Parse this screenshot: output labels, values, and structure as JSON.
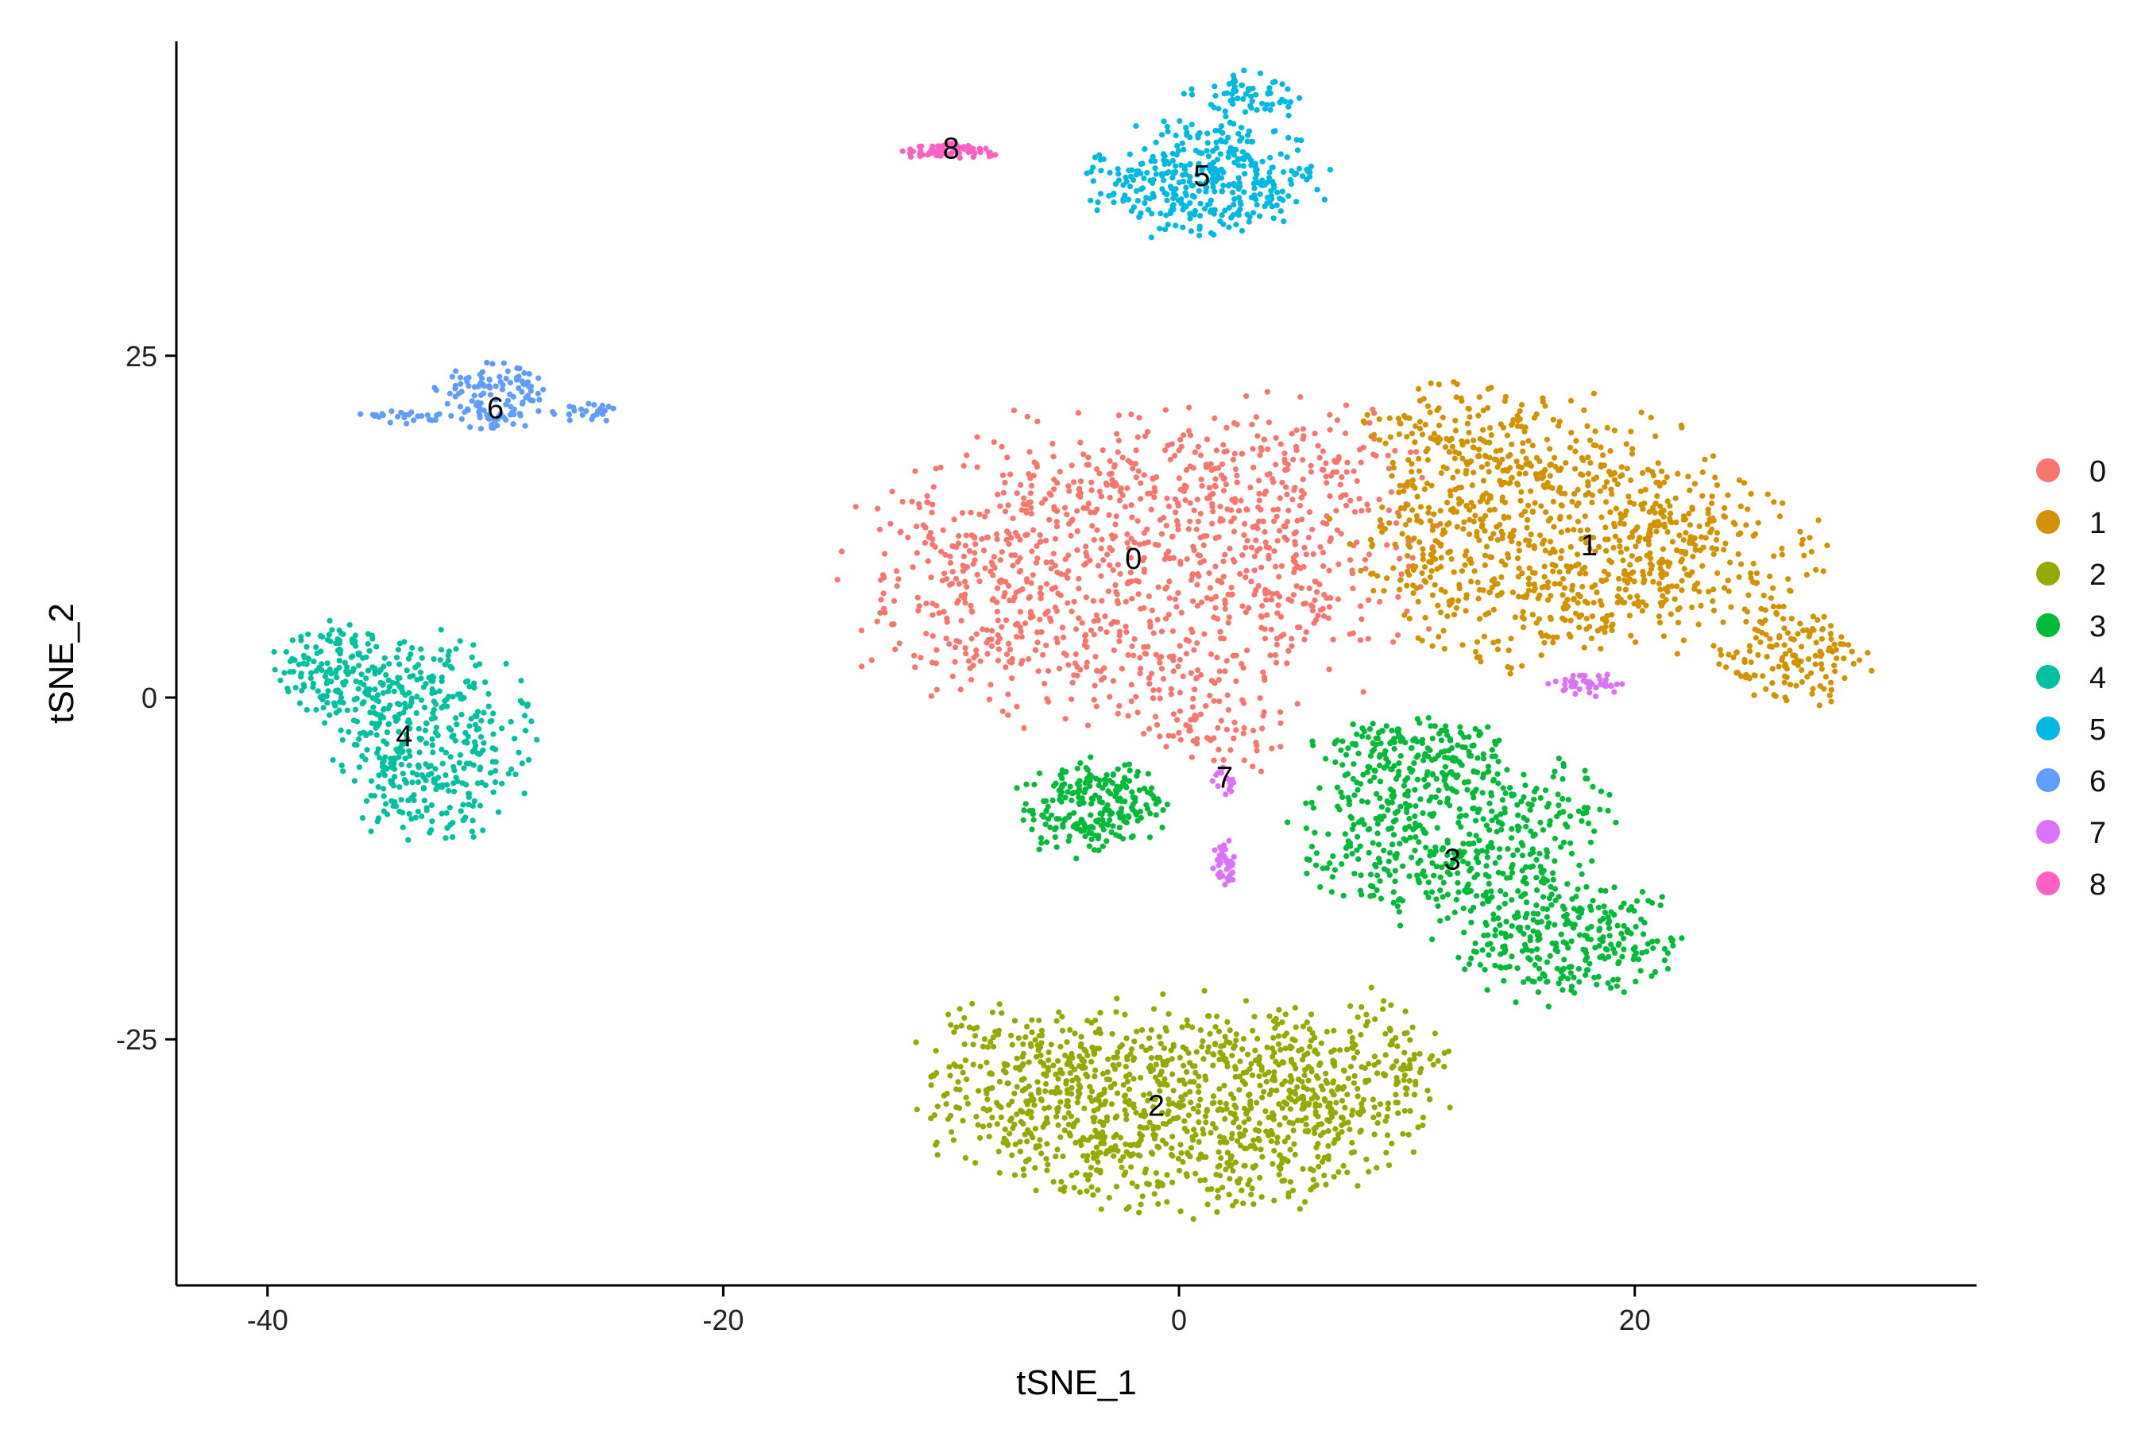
{
  "chart_data": {
    "type": "scatter",
    "title": "",
    "xlabel": "tSNE_1",
    "ylabel": "tSNE_2",
    "xlim": [
      -44,
      35
    ],
    "ylim": [
      -43,
      48
    ],
    "x_ticks": [
      -40,
      -20,
      0,
      20
    ],
    "y_ticks": [
      25,
      0,
      -25
    ],
    "x_tick_labels": [
      "-40",
      "-20",
      "0",
      "20"
    ],
    "y_tick_labels": [
      "25",
      "0",
      "-25"
    ],
    "grid": false,
    "legend_position": "right",
    "series": [
      {
        "name": "0",
        "color": "#F8766D",
        "label_x": -2,
        "label_y": 10,
        "regions": [
          {
            "cx": -2,
            "cy": 9,
            "rx": 14,
            "ry": 13,
            "n": 1050
          },
          {
            "cx": 5,
            "cy": 17,
            "rx": 6,
            "ry": 6,
            "n": 120
          },
          {
            "cx": 2,
            "cy": -3,
            "rx": 4,
            "ry": 3,
            "n": 50
          }
        ]
      },
      {
        "name": "1",
        "color": "#D39200",
        "label_x": 18,
        "label_y": 11,
        "regions": [
          {
            "cx": 16,
            "cy": 12,
            "rx": 10,
            "ry": 11,
            "n": 820
          },
          {
            "cx": 27,
            "cy": 3,
            "rx": 4,
            "ry": 4,
            "n": 140
          },
          {
            "cx": 24,
            "cy": 10,
            "rx": 5,
            "ry": 6,
            "n": 110
          },
          {
            "cx": 12,
            "cy": 20,
            "rx": 5,
            "ry": 4,
            "n": 90
          }
        ]
      },
      {
        "name": "2",
        "color": "#93AA00",
        "label_x": -1,
        "label_y": -30,
        "regions": [
          {
            "cx": 0,
            "cy": -30,
            "rx": 12,
            "ry": 9,
            "n": 1000
          },
          {
            "cx": 8,
            "cy": -27,
            "rx": 5,
            "ry": 6,
            "n": 150
          },
          {
            "cx": -8,
            "cy": -27,
            "rx": 4,
            "ry": 6,
            "n": 100
          }
        ]
      },
      {
        "name": "3",
        "color": "#00BA38",
        "label_x": 12,
        "label_y": -12,
        "regions": [
          {
            "cx": 12,
            "cy": -10,
            "rx": 8,
            "ry": 8,
            "n": 500
          },
          {
            "cx": 17,
            "cy": -18,
            "rx": 6,
            "ry": 5,
            "n": 280
          },
          {
            "cx": 10,
            "cy": -4,
            "rx": 5,
            "ry": 3,
            "n": 150
          },
          {
            "cx": -4,
            "cy": -8,
            "rx": 4,
            "ry": 4,
            "n": 230
          }
        ]
      },
      {
        "name": "4",
        "color": "#00C19F",
        "label_x": -34,
        "label_y": -3,
        "regions": [
          {
            "cx": -33,
            "cy": -3,
            "rx": 5,
            "ry": 9,
            "n": 420
          },
          {
            "cx": -37,
            "cy": 2,
            "rx": 3,
            "ry": 4,
            "n": 150
          }
        ]
      },
      {
        "name": "5",
        "color": "#00B9E3",
        "label_x": 1,
        "label_y": 38,
        "regions": [
          {
            "cx": 1,
            "cy": 38,
            "rx": 6,
            "ry": 5,
            "n": 380
          },
          {
            "cx": 3,
            "cy": 44,
            "rx": 3,
            "ry": 2,
            "n": 60
          }
        ]
      },
      {
        "name": "6",
        "color": "#619CFF",
        "label_x": -30,
        "label_y": 21,
        "regions": [
          {
            "cx": -30,
            "cy": 22,
            "rx": 3,
            "ry": 3,
            "n": 120
          },
          {
            "cx": -34,
            "cy": 20.5,
            "rx": 3,
            "ry": 0.6,
            "n": 25
          },
          {
            "cx": -26,
            "cy": 21,
            "rx": 2,
            "ry": 1,
            "n": 25
          }
        ]
      },
      {
        "name": "7",
        "color": "#DB72FB",
        "label_x": 2,
        "label_y": -6,
        "regions": [
          {
            "cx": 2,
            "cy": -12,
            "rx": 0.8,
            "ry": 2,
            "n": 45
          },
          {
            "cx": 2,
            "cy": -6,
            "rx": 0.6,
            "ry": 1.5,
            "n": 15
          },
          {
            "cx": 18,
            "cy": 1,
            "rx": 2,
            "ry": 1,
            "n": 45
          }
        ]
      },
      {
        "name": "8",
        "color": "#FF61C3",
        "label_x": -10,
        "label_y": 40,
        "regions": [
          {
            "cx": -10,
            "cy": 40,
            "rx": 2.5,
            "ry": 0.7,
            "n": 80
          }
        ]
      }
    ]
  }
}
